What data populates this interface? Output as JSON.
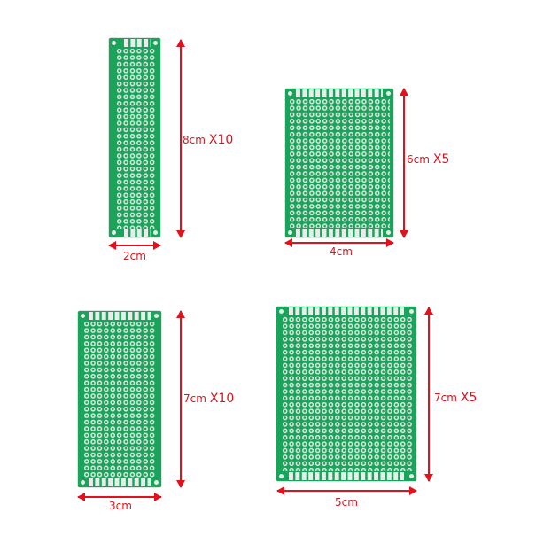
{
  "colors": {
    "board": "#1aa35a",
    "pad": "#d7e3dc",
    "dimension": "#e5101a"
  },
  "boards": [
    {
      "height_label": "8cm",
      "quantity": "X10",
      "width_label": "2cm"
    },
    {
      "height_label": "6cm",
      "quantity": "X5",
      "width_label": "4cm"
    },
    {
      "height_label": "7cm",
      "quantity": "X10",
      "width_label": "3cm"
    },
    {
      "height_label": "7cm",
      "quantity": "X5",
      "width_label": "5cm"
    }
  ]
}
